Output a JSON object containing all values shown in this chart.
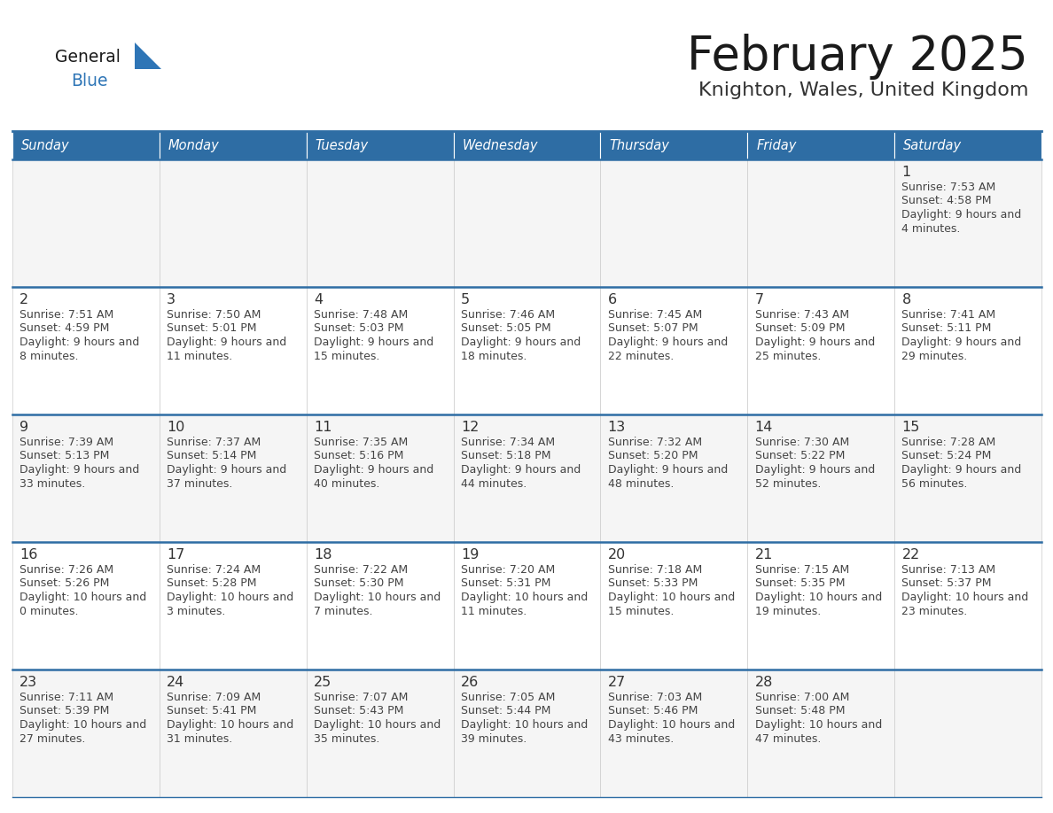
{
  "title": "February 2025",
  "subtitle": "Knighton, Wales, United Kingdom",
  "header_bg": "#2E6DA4",
  "header_text_color": "#FFFFFF",
  "day_names": [
    "Sunday",
    "Monday",
    "Tuesday",
    "Wednesday",
    "Thursday",
    "Friday",
    "Saturday"
  ],
  "bg_color": "#FFFFFF",
  "row_bg": [
    "#F5F5F5",
    "#FFFFFF",
    "#F5F5F5",
    "#FFFFFF",
    "#F5F5F5"
  ],
  "border_color": "#2E6DA4",
  "date_color": "#333333",
  "text_color": "#444444",
  "logo_general_color": "#1a1a1a",
  "logo_blue_color": "#2E75B6",
  "calendar": [
    [
      null,
      null,
      null,
      null,
      null,
      null,
      {
        "day": 1,
        "sunrise": "7:53 AM",
        "sunset": "4:58 PM",
        "daylight": "9 hours and 4 minutes."
      }
    ],
    [
      {
        "day": 2,
        "sunrise": "7:51 AM",
        "sunset": "4:59 PM",
        "daylight": "9 hours and 8 minutes."
      },
      {
        "day": 3,
        "sunrise": "7:50 AM",
        "sunset": "5:01 PM",
        "daylight": "9 hours and 11 minutes."
      },
      {
        "day": 4,
        "sunrise": "7:48 AM",
        "sunset": "5:03 PM",
        "daylight": "9 hours and 15 minutes."
      },
      {
        "day": 5,
        "sunrise": "7:46 AM",
        "sunset": "5:05 PM",
        "daylight": "9 hours and 18 minutes."
      },
      {
        "day": 6,
        "sunrise": "7:45 AM",
        "sunset": "5:07 PM",
        "daylight": "9 hours and 22 minutes."
      },
      {
        "day": 7,
        "sunrise": "7:43 AM",
        "sunset": "5:09 PM",
        "daylight": "9 hours and 25 minutes."
      },
      {
        "day": 8,
        "sunrise": "7:41 AM",
        "sunset": "5:11 PM",
        "daylight": "9 hours and 29 minutes."
      }
    ],
    [
      {
        "day": 9,
        "sunrise": "7:39 AM",
        "sunset": "5:13 PM",
        "daylight": "9 hours and 33 minutes."
      },
      {
        "day": 10,
        "sunrise": "7:37 AM",
        "sunset": "5:14 PM",
        "daylight": "9 hours and 37 minutes."
      },
      {
        "day": 11,
        "sunrise": "7:35 AM",
        "sunset": "5:16 PM",
        "daylight": "9 hours and 40 minutes."
      },
      {
        "day": 12,
        "sunrise": "7:34 AM",
        "sunset": "5:18 PM",
        "daylight": "9 hours and 44 minutes."
      },
      {
        "day": 13,
        "sunrise": "7:32 AM",
        "sunset": "5:20 PM",
        "daylight": "9 hours and 48 minutes."
      },
      {
        "day": 14,
        "sunrise": "7:30 AM",
        "sunset": "5:22 PM",
        "daylight": "9 hours and 52 minutes."
      },
      {
        "day": 15,
        "sunrise": "7:28 AM",
        "sunset": "5:24 PM",
        "daylight": "9 hours and 56 minutes."
      }
    ],
    [
      {
        "day": 16,
        "sunrise": "7:26 AM",
        "sunset": "5:26 PM",
        "daylight": "10 hours and 0 minutes."
      },
      {
        "day": 17,
        "sunrise": "7:24 AM",
        "sunset": "5:28 PM",
        "daylight": "10 hours and 3 minutes."
      },
      {
        "day": 18,
        "sunrise": "7:22 AM",
        "sunset": "5:30 PM",
        "daylight": "10 hours and 7 minutes."
      },
      {
        "day": 19,
        "sunrise": "7:20 AM",
        "sunset": "5:31 PM",
        "daylight": "10 hours and 11 minutes."
      },
      {
        "day": 20,
        "sunrise": "7:18 AM",
        "sunset": "5:33 PM",
        "daylight": "10 hours and 15 minutes."
      },
      {
        "day": 21,
        "sunrise": "7:15 AM",
        "sunset": "5:35 PM",
        "daylight": "10 hours and 19 minutes."
      },
      {
        "day": 22,
        "sunrise": "7:13 AM",
        "sunset": "5:37 PM",
        "daylight": "10 hours and 23 minutes."
      }
    ],
    [
      {
        "day": 23,
        "sunrise": "7:11 AM",
        "sunset": "5:39 PM",
        "daylight": "10 hours and 27 minutes."
      },
      {
        "day": 24,
        "sunrise": "7:09 AM",
        "sunset": "5:41 PM",
        "daylight": "10 hours and 31 minutes."
      },
      {
        "day": 25,
        "sunrise": "7:07 AM",
        "sunset": "5:43 PM",
        "daylight": "10 hours and 35 minutes."
      },
      {
        "day": 26,
        "sunrise": "7:05 AM",
        "sunset": "5:44 PM",
        "daylight": "10 hours and 39 minutes."
      },
      {
        "day": 27,
        "sunrise": "7:03 AM",
        "sunset": "5:46 PM",
        "daylight": "10 hours and 43 minutes."
      },
      {
        "day": 28,
        "sunrise": "7:00 AM",
        "sunset": "5:48 PM",
        "daylight": "10 hours and 47 minutes."
      },
      null
    ]
  ]
}
